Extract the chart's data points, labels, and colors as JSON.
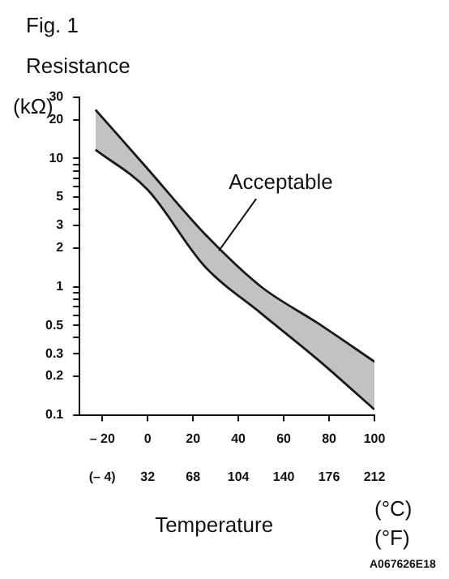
{
  "chart_data": {
    "type": "line",
    "title": "Fig. 1",
    "ylabel": "Resistance (kΩ)",
    "xlabel": "Temperature",
    "x2label": "(°F)",
    "annotations": [
      "(°C)",
      {
        "text": "Acceptable",
        "x": 30,
        "y": 1.8
      },
      "A067626E18"
    ],
    "x": [
      -23,
      0,
      25,
      50,
      75,
      100
    ],
    "series": [
      {
        "color": "#1a1a1a",
        "values": [
          24,
          8.3,
          2.6,
          1.0,
          0.52,
          0.26
        ],
        "upper": [
          24,
          8.3,
          2.6,
          1.0,
          0.52,
          0.26
        ],
        "lower": [
          11.7,
          5.7,
          1.45,
          0.62,
          0.27,
          0.11
        ]
      },
      {
        "color": "#1a1a1a",
        "values": [
          11.7,
          5.7,
          1.45,
          0.62,
          0.27,
          0.11
        ]
      }
    ],
    "log": "y",
    "grid": false,
    "legend": false,
    "marker": "none",
    "line_style": "solid",
    "xlim": [
      -30,
      100
    ],
    "xticks": [
      {
        "value": -20,
        "label": "– 20"
      },
      0,
      20,
      40,
      60,
      80,
      100
    ],
    "x2lim": [
      -22,
      212
    ],
    "x2ticks": [
      {
        "value": -4,
        "label": "(– 4)"
      },
      32,
      68,
      104,
      140,
      176,
      212
    ],
    "ylim": [
      0.1,
      30
    ],
    "yticks": [
      0.1,
      0.2,
      0.3,
      {
        "value": 0.4,
        "label": null
      },
      0.5,
      {
        "value": 0.6,
        "label": null
      },
      {
        "value": 0.7,
        "label": null
      },
      {
        "value": 0.8,
        "label": null
      },
      {
        "value": 0.9,
        "label": null
      },
      1,
      2,
      3,
      {
        "value": 4,
        "label": null
      },
      5,
      {
        "value": 6,
        "label": null
      },
      {
        "value": 7,
        "label": null
      },
      {
        "value": 8,
        "label": null
      },
      {
        "value": 9,
        "label": null
      },
      10,
      20,
      30
    ]
  }
}
